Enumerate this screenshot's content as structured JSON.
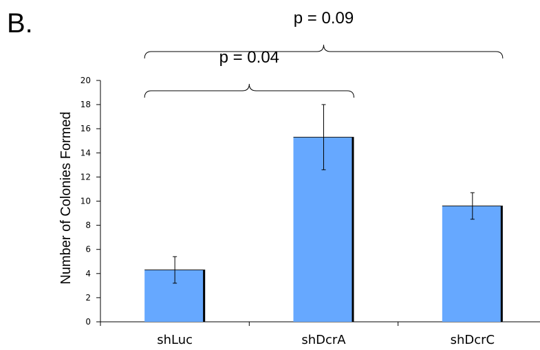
{
  "panel_label": "B.",
  "chart_data": {
    "type": "bar",
    "categories": [
      "shLuc",
      "shDcrA",
      "shDcrC"
    ],
    "values": [
      4.3,
      15.3,
      9.6
    ],
    "errors": [
      1.1,
      2.7,
      1.1
    ],
    "ylabel": "Number of Colonies Formed",
    "xlabel": "",
    "ylim": [
      0,
      20
    ],
    "yticks": [
      0,
      2,
      4,
      6,
      8,
      10,
      12,
      14,
      16,
      18,
      20
    ],
    "bar_color": "#66A8FF",
    "bar_shadow_color": "#000000",
    "annotations": [
      {
        "text": "p = 0.04",
        "from": "shLuc",
        "to": "shDcrA"
      },
      {
        "text": "p = 0.09",
        "from": "shLuc",
        "to": "shDcrC"
      }
    ]
  }
}
